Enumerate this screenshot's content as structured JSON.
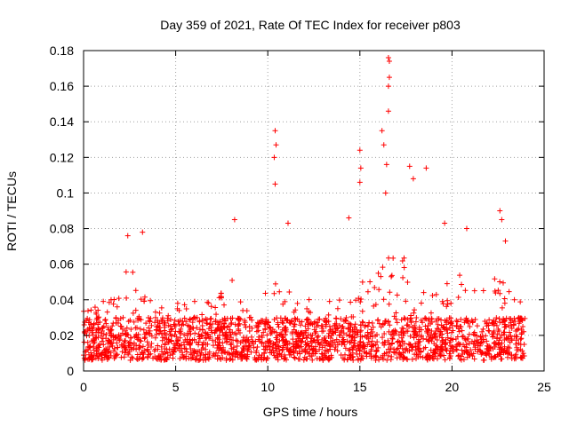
{
  "chart_data": {
    "type": "scatter",
    "title": "Day 359 of 2021, Rate Of TEC Index for receiver p803",
    "xlabel": "GPS time / hours",
    "ylabel": "ROTI / TECUs",
    "xlim": [
      0,
      25
    ],
    "ylim": [
      0,
      0.18
    ],
    "xticks": [
      0,
      5,
      10,
      15,
      20,
      25
    ],
    "yticks": [
      0,
      0.02,
      0.04,
      0.06,
      0.08,
      0.1,
      0.12,
      0.14,
      0.16,
      0.18
    ],
    "xtick_labels": [
      "0",
      "5",
      "10",
      "15",
      "20",
      "25"
    ],
    "ytick_labels": [
      "0",
      "0.02",
      "0.04",
      "0.06",
      "0.08",
      "0.1",
      "0.12",
      "0.14",
      "0.16",
      "0.18"
    ],
    "grid": true,
    "marker": "+",
    "series": [
      {
        "name": "ROTI",
        "color": "#ff0000",
        "data_range": {
          "x": [
            0,
            24
          ],
          "y": [
            0.002,
            0.176
          ]
        },
        "highlights": [
          {
            "x": 2.4,
            "y": 0.076
          },
          {
            "x": 3.2,
            "y": 0.078
          },
          {
            "x": 8.2,
            "y": 0.085
          },
          {
            "x": 10.4,
            "y": 0.135
          },
          {
            "x": 10.45,
            "y": 0.127
          },
          {
            "x": 10.35,
            "y": 0.12
          },
          {
            "x": 10.4,
            "y": 0.105
          },
          {
            "x": 11.1,
            "y": 0.083
          },
          {
            "x": 14.4,
            "y": 0.086
          },
          {
            "x": 15.0,
            "y": 0.124
          },
          {
            "x": 15.05,
            "y": 0.114
          },
          {
            "x": 15.0,
            "y": 0.106
          },
          {
            "x": 16.2,
            "y": 0.135
          },
          {
            "x": 16.3,
            "y": 0.127
          },
          {
            "x": 16.55,
            "y": 0.176
          },
          {
            "x": 16.6,
            "y": 0.174
          },
          {
            "x": 16.6,
            "y": 0.165
          },
          {
            "x": 16.55,
            "y": 0.16
          },
          {
            "x": 16.55,
            "y": 0.146
          },
          {
            "x": 16.45,
            "y": 0.116
          },
          {
            "x": 16.4,
            "y": 0.1
          },
          {
            "x": 17.7,
            "y": 0.115
          },
          {
            "x": 17.9,
            "y": 0.108
          },
          {
            "x": 18.6,
            "y": 0.114
          },
          {
            "x": 19.6,
            "y": 0.083
          },
          {
            "x": 20.8,
            "y": 0.08
          },
          {
            "x": 22.6,
            "y": 0.09
          },
          {
            "x": 22.7,
            "y": 0.085
          },
          {
            "x": 22.9,
            "y": 0.073
          }
        ]
      }
    ]
  }
}
